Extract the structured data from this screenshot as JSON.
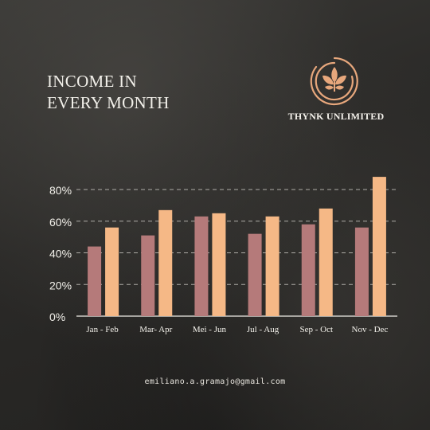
{
  "title": {
    "line1": "INCOME IN",
    "line2": "EVERY MONTH"
  },
  "brand": {
    "name": "THYNK UNLIMITED",
    "logo_icon": "leaf-sprout-circle-icon"
  },
  "footer": {
    "email": "emiliano.a.gramajo@gmail.com"
  },
  "colors": {
    "background": "#2b2a28",
    "series_1": "#b57a7a",
    "series_2": "#f5b886",
    "text": "#f2f0ea",
    "grid": "#d8d6d0",
    "logo": "#e7a77c"
  },
  "chart_data": {
    "type": "bar",
    "title": "INCOME IN EVERY MONTH",
    "categories": [
      "Jan - Feb",
      "Mar- Apr",
      "Mei - Jun",
      "Jul - Aug",
      "Sep - Oct",
      "Nov - Dec"
    ],
    "series": [
      {
        "values": [
          44,
          51,
          63,
          52,
          58,
          56
        ]
      },
      {
        "values": [
          56,
          67,
          65,
          63,
          68,
          88
        ]
      }
    ],
    "ylim": [
      0,
      80
    ],
    "yticks": [
      "0%",
      "20%",
      "40%",
      "60%",
      "80%"
    ],
    "ytick_values": [
      0,
      20,
      40,
      60,
      80
    ],
    "xlabel": "",
    "ylabel": "",
    "grid": "dashed horizontal",
    "legend": "none"
  }
}
